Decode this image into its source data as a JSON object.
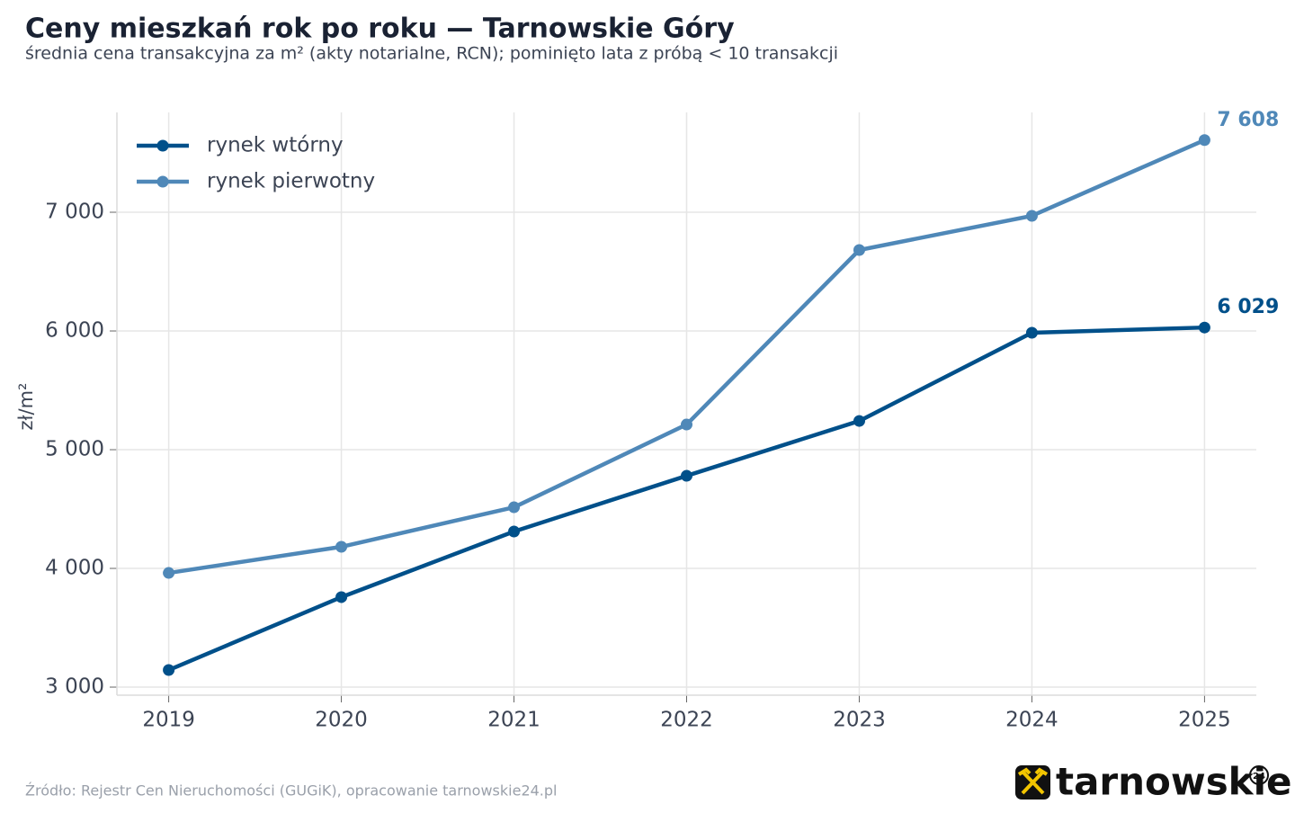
{
  "chart_data": {
    "type": "line",
    "title": "Ceny mieszkań rok po roku — Tarnowskie Góry",
    "subtitle": "średnia cena transakcyjna za m² (akty notarialne, RCN); pominięto lata z próbą < 10 transakcji",
    "y_label": "zł/m²",
    "source": "Źródło: Rejestr Cen Nieruchomości (GUGiK), opracowanie tarnowskie24.pl",
    "logo": {
      "text": "tarnowskie",
      "badge": "24"
    },
    "x": [
      2019,
      2020,
      2021,
      2022,
      2023,
      2024,
      2025
    ],
    "series": [
      {
        "name": "rynek wtórny",
        "color": "#00508a",
        "values": [
          3144,
          3758,
          4311,
          4780,
          5242,
          5985,
          6029
        ],
        "value_labels": [
          null,
          null,
          null,
          null,
          null,
          null,
          "6 029"
        ]
      },
      {
        "name": "rynek pierwotny",
        "color": "#4f88b8",
        "values": [
          3962,
          4182,
          4515,
          5212,
          6682,
          6970,
          7608
        ],
        "value_labels": [
          null,
          null,
          null,
          null,
          null,
          null,
          "7 608"
        ]
      }
    ],
    "xlim": [
      2018.7,
      2025.3
    ],
    "xticks": [
      2019,
      2020,
      2021,
      2022,
      2023,
      2024,
      2025
    ],
    "ylim": [
      2932,
      7841
    ],
    "yticks": [
      {
        "value": 3000,
        "label": "3 000"
      },
      {
        "value": 4000,
        "label": "4 000"
      },
      {
        "value": 5000,
        "label": "5 000"
      },
      {
        "value": 6000,
        "label": "6 000"
      },
      {
        "value": 7000,
        "label": "7 000"
      }
    ],
    "grid": true,
    "legend": "upper-left"
  }
}
